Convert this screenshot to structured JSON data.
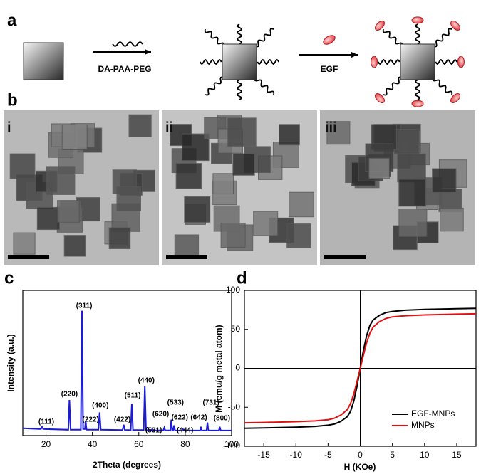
{
  "panel_labels": [
    "a",
    "b",
    "c",
    "d"
  ],
  "scheme": {
    "polymer_label": "DA-PAA-PEG",
    "ligand_label": "EGF"
  },
  "tem": {
    "labels": [
      "i",
      "ii",
      "iii"
    ]
  },
  "chart_data": [
    {
      "type": "line",
      "xlabel": "2Theta (degrees)",
      "ylabel": "Intensity (a.u.)",
      "x": [
        10,
        17.8,
        18.3,
        18.8,
        29.6,
        30.1,
        30.6,
        35.0,
        35.5,
        36.0,
        36.8,
        37.1,
        37.5,
        42.6,
        43.1,
        43.6,
        53.0,
        53.5,
        54.0,
        56.5,
        57.0,
        57.5,
        62.1,
        62.6,
        63.1,
        65.4,
        65.8,
        66.2,
        70.6,
        71.0,
        71.4,
        73.6,
        74.0,
        74.4,
        74.8,
        75.2,
        75.6,
        78.6,
        79.0,
        79.4,
        86.4,
        86.8,
        87.2,
        89.2,
        89.6,
        90.0,
        94.5,
        94.9,
        95.3,
        100
      ],
      "series": [
        {
          "color": "#1c1cd4",
          "values": [
            5,
            4.5,
            6,
            4.5,
            4,
            24.5,
            4,
            4,
            86,
            4.5,
            4.5,
            10,
            4,
            4,
            16,
            4,
            3.8,
            7.5,
            3.8,
            3.8,
            22,
            3.8,
            3.8,
            34,
            3.8,
            3.6,
            4.5,
            3.6,
            3.6,
            5.5,
            3.6,
            3.6,
            11,
            3.6,
            3.6,
            7,
            3.6,
            3.5,
            4.5,
            3.5,
            3.5,
            6,
            3.5,
            3.5,
            9,
            3.5,
            3.5,
            6,
            3.5,
            3.5
          ]
        }
      ],
      "xlim": [
        10,
        100
      ],
      "xticks": [
        20,
        40,
        60,
        80,
        100
      ],
      "ylim": [
        0,
        100
      ],
      "annotations": [
        {
          "text": "(111)",
          "x": 18.3
        },
        {
          "text": "(220)",
          "x": 30.1
        },
        {
          "text": "(311)",
          "x": 35.5
        },
        {
          "text": "(222)",
          "x": 37.1
        },
        {
          "text": "(400)",
          "x": 43.1
        },
        {
          "text": "(422)",
          "x": 53.5
        },
        {
          "text": "(511)",
          "x": 57.0
        },
        {
          "text": "(440)",
          "x": 62.6
        },
        {
          "text": "(531)",
          "x": 65.8
        },
        {
          "text": "(620)",
          "x": 71.0
        },
        {
          "text": "(533)",
          "x": 74.0
        },
        {
          "text": "(622)",
          "x": 75.2
        },
        {
          "text": "(444)",
          "x": 79.0
        },
        {
          "text": "(642)",
          "x": 86.8
        },
        {
          "text": "(731)",
          "x": 89.6
        },
        {
          "text": "(800)",
          "x": 94.9
        }
      ]
    },
    {
      "type": "line",
      "xlabel": "H (KOe)",
      "ylabel": "M (emu/g metal atom)",
      "x": [
        -18,
        -15,
        -10,
        -7,
        -5,
        -4,
        -3,
        -2,
        -1.5,
        -1,
        -0.5,
        0,
        0.5,
        1,
        1.5,
        2,
        3,
        4,
        5,
        7,
        10,
        15,
        18
      ],
      "series": [
        {
          "name": "EGF-MNPs",
          "color": "#000000",
          "values": [
            -77,
            -76.5,
            -75.5,
            -74.5,
            -73,
            -71.5,
            -68,
            -62,
            -55,
            -42,
            -23,
            0,
            23,
            42,
            55,
            62,
            68,
            71.5,
            73,
            74.5,
            75.5,
            76.5,
            77
          ]
        },
        {
          "name": "MNPs",
          "color": "#e01010",
          "values": [
            -70,
            -69.5,
            -68.5,
            -67.5,
            -66,
            -64,
            -60,
            -53,
            -45,
            -33,
            -17,
            0,
            17,
            33,
            45,
            53,
            60,
            64,
            66,
            67.5,
            68.5,
            69.5,
            70
          ]
        }
      ],
      "xlim": [
        -18,
        18
      ],
      "xticks": [
        -15,
        -10,
        -5,
        0,
        5,
        10,
        15
      ],
      "ylim": [
        -100,
        100
      ],
      "yticks": [
        -100,
        -50,
        0,
        50,
        100
      ],
      "legend": "lower right"
    }
  ]
}
